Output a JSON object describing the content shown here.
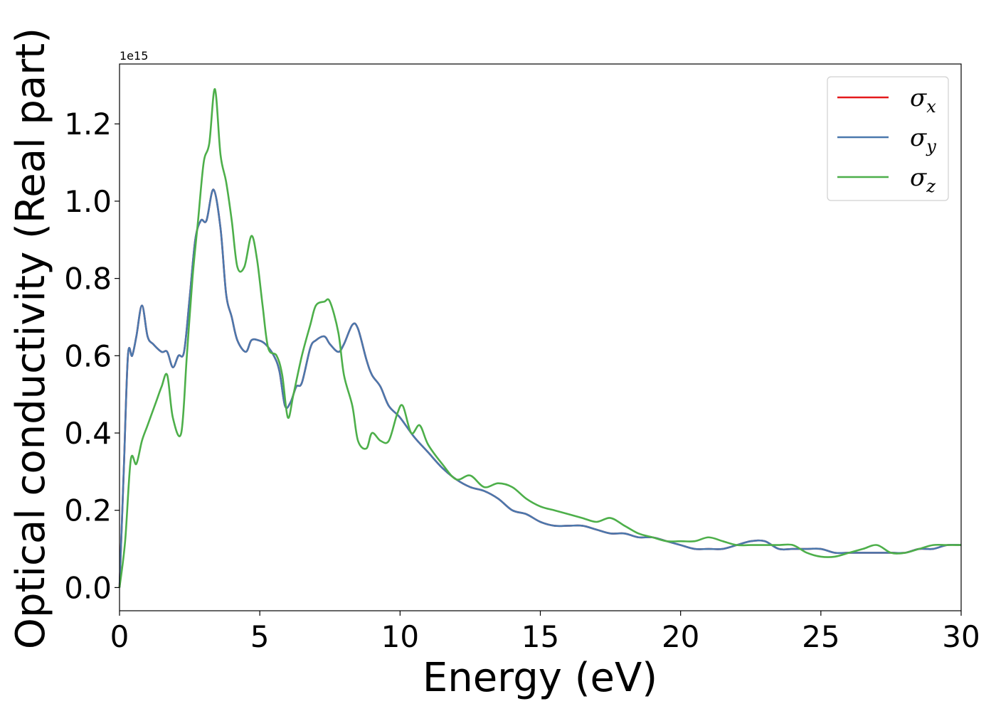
{
  "chart_data": {
    "type": "line",
    "title": "",
    "xlabel": "Energy (eV)",
    "ylabel": "Optical conductivity (Real part)",
    "y_offset_text": "1e15",
    "y_scale": 1000000000000000.0,
    "xlim": [
      0,
      30
    ],
    "ylim": [
      -0.06,
      1.355
    ],
    "x_ticks": [
      0,
      5,
      10,
      15,
      20,
      25,
      30
    ],
    "x_tick_labels": [
      "0",
      "5",
      "10",
      "15",
      "20",
      "25",
      "30"
    ],
    "y_ticks": [
      0.0,
      0.2,
      0.4,
      0.6,
      0.8,
      1.0,
      1.2
    ],
    "y_tick_labels": [
      "0.0",
      "0.2",
      "0.4",
      "0.6",
      "0.8",
      "1.0",
      "1.2"
    ],
    "grid": false,
    "legend_position": "top-right",
    "series": [
      {
        "name": "σ",
        "name_sub": "x",
        "color": "#e41a1c",
        "x": [
          0,
          0.15,
          0.3,
          0.45,
          0.6,
          0.8,
          1.0,
          1.2,
          1.5,
          1.7,
          1.9,
          2.1,
          2.3,
          2.5,
          2.7,
          2.9,
          3.1,
          3.35,
          3.6,
          3.8,
          4.0,
          4.2,
          4.5,
          4.7,
          4.95,
          5.2,
          5.5,
          5.7,
          5.9,
          6.1,
          6.3,
          6.5,
          6.8,
          7.0,
          7.3,
          7.5,
          7.8,
          8.0,
          8.3,
          8.5,
          8.8,
          9.0,
          9.3,
          9.6,
          10.0,
          10.5,
          11,
          11.5,
          12,
          12.5,
          13,
          13.5,
          14,
          14.5,
          15,
          15.5,
          16,
          16.5,
          17,
          17.5,
          18,
          18.5,
          19,
          19.5,
          20,
          20.5,
          21,
          21.5,
          22,
          22.5,
          23,
          23.5,
          24,
          24.5,
          25,
          25.5,
          26,
          26.5,
          27,
          27.5,
          28,
          28.5,
          29,
          29.5,
          30
        ],
        "y": [
          0.0,
          0.3,
          0.6,
          0.6,
          0.65,
          0.73,
          0.65,
          0.63,
          0.61,
          0.61,
          0.57,
          0.6,
          0.61,
          0.75,
          0.9,
          0.95,
          0.95,
          1.03,
          0.93,
          0.76,
          0.7,
          0.64,
          0.61,
          0.64,
          0.64,
          0.63,
          0.6,
          0.56,
          0.47,
          0.48,
          0.52,
          0.53,
          0.62,
          0.64,
          0.65,
          0.63,
          0.61,
          0.63,
          0.68,
          0.67,
          0.59,
          0.55,
          0.52,
          0.47,
          0.44,
          0.39,
          0.35,
          0.31,
          0.28,
          0.26,
          0.25,
          0.23,
          0.2,
          0.19,
          0.17,
          0.16,
          0.16,
          0.16,
          0.15,
          0.14,
          0.14,
          0.13,
          0.13,
          0.12,
          0.11,
          0.1,
          0.1,
          0.1,
          0.11,
          0.12,
          0.12,
          0.1,
          0.1,
          0.1,
          0.1,
          0.09,
          0.09,
          0.09,
          0.09,
          0.09,
          0.09,
          0.1,
          0.1,
          0.11,
          0.11
        ]
      },
      {
        "name": "σ",
        "name_sub": "y",
        "color": "#4a78ad",
        "x": [
          0,
          0.15,
          0.3,
          0.45,
          0.6,
          0.8,
          1.0,
          1.2,
          1.5,
          1.7,
          1.9,
          2.1,
          2.3,
          2.5,
          2.7,
          2.9,
          3.1,
          3.35,
          3.6,
          3.8,
          4.0,
          4.2,
          4.5,
          4.7,
          4.95,
          5.2,
          5.5,
          5.7,
          5.9,
          6.1,
          6.3,
          6.5,
          6.8,
          7.0,
          7.3,
          7.5,
          7.8,
          8.0,
          8.3,
          8.5,
          8.8,
          9.0,
          9.3,
          9.6,
          10.0,
          10.5,
          11,
          11.5,
          12,
          12.5,
          13,
          13.5,
          14,
          14.5,
          15,
          15.5,
          16,
          16.5,
          17,
          17.5,
          18,
          18.5,
          19,
          19.5,
          20,
          20.5,
          21,
          21.5,
          22,
          22.5,
          23,
          23.5,
          24,
          24.5,
          25,
          25.5,
          26,
          26.5,
          27,
          27.5,
          28,
          28.5,
          29,
          29.5,
          30
        ],
        "y": [
          0.0,
          0.3,
          0.6,
          0.6,
          0.65,
          0.73,
          0.65,
          0.63,
          0.61,
          0.61,
          0.57,
          0.6,
          0.61,
          0.75,
          0.9,
          0.95,
          0.95,
          1.03,
          0.93,
          0.76,
          0.7,
          0.64,
          0.61,
          0.64,
          0.64,
          0.63,
          0.6,
          0.56,
          0.47,
          0.48,
          0.52,
          0.53,
          0.62,
          0.64,
          0.65,
          0.63,
          0.61,
          0.63,
          0.68,
          0.67,
          0.59,
          0.55,
          0.52,
          0.47,
          0.44,
          0.39,
          0.35,
          0.31,
          0.28,
          0.26,
          0.25,
          0.23,
          0.2,
          0.19,
          0.17,
          0.16,
          0.16,
          0.16,
          0.15,
          0.14,
          0.14,
          0.13,
          0.13,
          0.12,
          0.11,
          0.1,
          0.1,
          0.1,
          0.11,
          0.12,
          0.12,
          0.1,
          0.1,
          0.1,
          0.1,
          0.09,
          0.09,
          0.09,
          0.09,
          0.09,
          0.09,
          0.1,
          0.1,
          0.11,
          0.11
        ]
      },
      {
        "name": "σ",
        "name_sub": "z",
        "color": "#4daf4a",
        "x": [
          0,
          0.2,
          0.4,
          0.6,
          0.8,
          1.0,
          1.3,
          1.5,
          1.7,
          1.9,
          2.2,
          2.4,
          2.6,
          2.8,
          3.0,
          3.2,
          3.4,
          3.6,
          3.8,
          4.0,
          4.2,
          4.45,
          4.7,
          4.9,
          5.1,
          5.3,
          5.6,
          5.8,
          6.0,
          6.2,
          6.5,
          6.8,
          7.0,
          7.3,
          7.5,
          7.8,
          8.0,
          8.3,
          8.5,
          8.8,
          9.0,
          9.3,
          9.6,
          9.9,
          10.1,
          10.4,
          10.7,
          11,
          11.5,
          12,
          12.5,
          13,
          13.5,
          14,
          14.5,
          15,
          15.5,
          16,
          16.5,
          17,
          17.5,
          18,
          18.5,
          19,
          19.5,
          20,
          20.5,
          21,
          21.5,
          22,
          22.5,
          23,
          23.5,
          24,
          24.5,
          25,
          25.5,
          26,
          26.5,
          27,
          27.5,
          28,
          28.5,
          29,
          29.5,
          30
        ],
        "y": [
          0.0,
          0.12,
          0.33,
          0.32,
          0.38,
          0.42,
          0.48,
          0.52,
          0.55,
          0.44,
          0.4,
          0.6,
          0.8,
          0.95,
          1.1,
          1.15,
          1.29,
          1.12,
          1.05,
          0.95,
          0.83,
          0.83,
          0.91,
          0.85,
          0.73,
          0.62,
          0.6,
          0.55,
          0.44,
          0.5,
          0.6,
          0.68,
          0.73,
          0.74,
          0.74,
          0.66,
          0.55,
          0.47,
          0.38,
          0.36,
          0.4,
          0.38,
          0.38,
          0.45,
          0.47,
          0.4,
          0.42,
          0.37,
          0.32,
          0.28,
          0.29,
          0.26,
          0.27,
          0.26,
          0.23,
          0.21,
          0.2,
          0.19,
          0.18,
          0.17,
          0.18,
          0.16,
          0.14,
          0.13,
          0.12,
          0.12,
          0.12,
          0.13,
          0.12,
          0.11,
          0.11,
          0.11,
          0.11,
          0.11,
          0.09,
          0.08,
          0.08,
          0.09,
          0.1,
          0.11,
          0.09,
          0.09,
          0.1,
          0.11,
          0.11,
          0.11
        ]
      }
    ]
  }
}
